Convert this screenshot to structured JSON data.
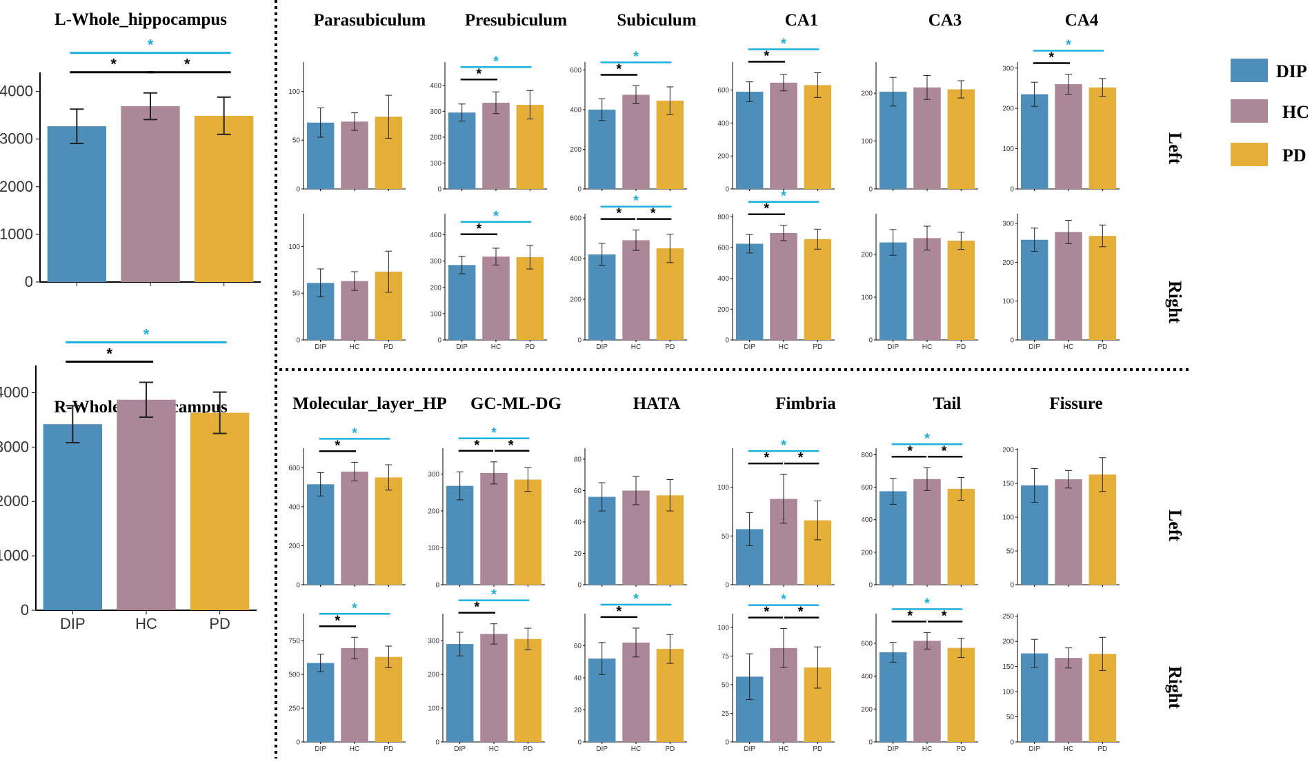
{
  "colors": {
    "DIP": "#4e8eba",
    "HC": "#ab8797",
    "PD": "#e4ae37",
    "sig_black": "#000000",
    "sig_blue": "#1ab0e0"
  },
  "legend": [
    {
      "label": "DIP",
      "color": "#4e8eba"
    },
    {
      "label": "HC",
      "color": "#ab8797"
    },
    {
      "label": "PD",
      "color": "#e4ae37"
    }
  ],
  "row_labels": {
    "left": "Left",
    "right": "Right"
  },
  "chart_data": [
    {
      "id": "L_whole",
      "type": "bar",
      "title": "L-Whole_hippocampus",
      "categories": [
        "DIP",
        "HC",
        "PD"
      ],
      "values": [
        3270,
        3690,
        3490
      ],
      "errors": [
        360,
        280,
        390
      ],
      "ylim": [
        0,
        4400
      ],
      "yticks": [
        0,
        1000,
        2000,
        3000,
        4000
      ],
      "show_xlabels": false,
      "sig": [
        {
          "pair": [
            0,
            1
          ],
          "color": "black",
          "level": 0
        },
        {
          "pair": [
            1,
            2
          ],
          "color": "black",
          "level": 0
        },
        {
          "pair": [
            0,
            2
          ],
          "color": "blue",
          "level": 1
        }
      ]
    },
    {
      "id": "R_whole",
      "type": "bar",
      "title": "R-Whole_hippocampus",
      "categories": [
        "DIP",
        "HC",
        "PD"
      ],
      "values": [
        3420,
        3870,
        3630
      ],
      "errors": [
        340,
        320,
        380
      ],
      "ylim": [
        0,
        4500
      ],
      "yticks": [
        0,
        1000,
        2000,
        3000,
        4000
      ],
      "show_xlabels": true,
      "sig": [
        {
          "pair": [
            0,
            1
          ],
          "color": "black",
          "level": 0
        },
        {
          "pair": [
            0,
            2
          ],
          "color": "blue",
          "level": 1
        }
      ]
    },
    {
      "id": "L_para",
      "type": "bar",
      "title": "Parasubiculum",
      "hemisphere": "Left",
      "categories": [
        "DIP",
        "HC",
        "PD"
      ],
      "values": [
        68,
        69,
        74
      ],
      "errors": [
        15,
        9,
        22
      ],
      "ylim": [
        0,
        130
      ],
      "yticks": [
        0,
        50,
        100
      ],
      "show_xlabels": false,
      "sig": []
    },
    {
      "id": "L_presub",
      "type": "bar",
      "title": "Presubiculum",
      "hemisphere": "Left",
      "categories": [
        "DIP",
        "HC",
        "PD"
      ],
      "values": [
        295,
        333,
        325
      ],
      "errors": [
        33,
        42,
        55
      ],
      "ylim": [
        0,
        490
      ],
      "yticks": [
        0,
        100,
        200,
        300,
        400
      ],
      "show_xlabels": false,
      "sig": [
        {
          "pair": [
            0,
            1
          ],
          "color": "black",
          "level": 0
        },
        {
          "pair": [
            0,
            2
          ],
          "color": "blue",
          "level": 1
        }
      ]
    },
    {
      "id": "L_sub",
      "type": "bar",
      "title": "Subiculum",
      "hemisphere": "Left",
      "categories": [
        "DIP",
        "HC",
        "PD"
      ],
      "values": [
        400,
        475,
        445
      ],
      "errors": [
        55,
        45,
        70
      ],
      "ylim": [
        0,
        640
      ],
      "yticks": [
        0,
        200,
        400,
        600
      ],
      "show_xlabels": false,
      "sig": [
        {
          "pair": [
            0,
            1
          ],
          "color": "black",
          "level": 0
        },
        {
          "pair": [
            0,
            2
          ],
          "color": "blue",
          "level": 1
        }
      ]
    },
    {
      "id": "L_ca1",
      "type": "bar",
      "title": "CA1",
      "hemisphere": "Left",
      "categories": [
        "DIP",
        "HC",
        "PD"
      ],
      "values": [
        590,
        645,
        630
      ],
      "errors": [
        60,
        50,
        75
      ],
      "ylim": [
        0,
        770
      ],
      "yticks": [
        0,
        200,
        400,
        600
      ],
      "show_xlabels": false,
      "sig": [
        {
          "pair": [
            0,
            1
          ],
          "color": "black",
          "level": 0
        },
        {
          "pair": [
            0,
            2
          ],
          "color": "blue",
          "level": 1
        }
      ]
    },
    {
      "id": "L_ca3",
      "type": "bar",
      "title": "CA3",
      "hemisphere": "Left",
      "categories": [
        "DIP",
        "HC",
        "PD"
      ],
      "values": [
        203,
        212,
        208
      ],
      "errors": [
        30,
        25,
        18
      ],
      "ylim": [
        0,
        265
      ],
      "yticks": [
        0,
        100,
        200
      ],
      "show_xlabels": false,
      "sig": []
    },
    {
      "id": "L_ca4",
      "type": "bar",
      "title": "CA4",
      "hemisphere": "Left",
      "categories": [
        "DIP",
        "HC",
        "PD"
      ],
      "values": [
        235,
        260,
        252
      ],
      "errors": [
        30,
        25,
        22
      ],
      "ylim": [
        0,
        315
      ],
      "yticks": [
        0,
        100,
        200,
        300
      ],
      "show_xlabels": false,
      "sig": [
        {
          "pair": [
            0,
            1
          ],
          "color": "black",
          "level": 0
        },
        {
          "pair": [
            0,
            2
          ],
          "color": "blue",
          "level": 1
        }
      ]
    },
    {
      "id": "R_para",
      "type": "bar",
      "title": "",
      "hemisphere": "Right",
      "categories": [
        "DIP",
        "HC",
        "PD"
      ],
      "values": [
        61,
        63,
        73
      ],
      "errors": [
        15,
        10,
        22
      ],
      "ylim": [
        0,
        135
      ],
      "yticks": [
        0,
        50,
        100
      ],
      "show_xlabels": true,
      "sig": []
    },
    {
      "id": "R_presub",
      "type": "bar",
      "title": "",
      "hemisphere": "Right",
      "categories": [
        "DIP",
        "HC",
        "PD"
      ],
      "values": [
        285,
        317,
        315
      ],
      "errors": [
        33,
        32,
        45
      ],
      "ylim": [
        0,
        480
      ],
      "yticks": [
        0,
        100,
        200,
        300,
        400
      ],
      "show_xlabels": true,
      "sig": [
        {
          "pair": [
            0,
            1
          ],
          "color": "black",
          "level": 0
        },
        {
          "pair": [
            0,
            2
          ],
          "color": "blue",
          "level": 1
        }
      ]
    },
    {
      "id": "R_sub",
      "type": "bar",
      "title": "",
      "hemisphere": "Right",
      "categories": [
        "DIP",
        "HC",
        "PD"
      ],
      "values": [
        420,
        490,
        450
      ],
      "errors": [
        55,
        50,
        70
      ],
      "ylim": [
        0,
        620
      ],
      "yticks": [
        0,
        200,
        400,
        600
      ],
      "show_xlabels": true,
      "sig": [
        {
          "pair": [
            0,
            1
          ],
          "color": "black",
          "level": 0
        },
        {
          "pair": [
            1,
            2
          ],
          "color": "black",
          "level": 0
        },
        {
          "pair": [
            0,
            2
          ],
          "color": "blue",
          "level": 1
        }
      ]
    },
    {
      "id": "R_ca1",
      "type": "bar",
      "title": "",
      "hemisphere": "Right",
      "categories": [
        "DIP",
        "HC",
        "PD"
      ],
      "values": [
        625,
        695,
        655
      ],
      "errors": [
        60,
        50,
        65
      ],
      "ylim": [
        0,
        820
      ],
      "yticks": [
        0,
        200,
        400,
        600,
        800
      ],
      "show_xlabels": true,
      "sig": [
        {
          "pair": [
            0,
            1
          ],
          "color": "black",
          "level": 0
        },
        {
          "pair": [
            0,
            2
          ],
          "color": "blue",
          "level": 1
        }
      ]
    },
    {
      "id": "R_ca3",
      "type": "bar",
      "title": "",
      "hemisphere": "Right",
      "categories": [
        "DIP",
        "HC",
        "PD"
      ],
      "values": [
        228,
        238,
        232
      ],
      "errors": [
        30,
        28,
        20
      ],
      "ylim": [
        0,
        295
      ],
      "yticks": [
        0,
        100,
        200
      ],
      "show_xlabels": true,
      "sig": []
    },
    {
      "id": "R_ca4",
      "type": "bar",
      "title": "",
      "hemisphere": "Right",
      "categories": [
        "DIP",
        "HC",
        "PD"
      ],
      "values": [
        258,
        278,
        268
      ],
      "errors": [
        30,
        30,
        28
      ],
      "ylim": [
        0,
        325
      ],
      "yticks": [
        0,
        100,
        200,
        300
      ],
      "show_xlabels": true,
      "sig": []
    },
    {
      "id": "L_mol",
      "type": "bar",
      "title": "Molecular_layer_HP",
      "hemisphere": "Left",
      "categories": [
        "DIP",
        "HC",
        "PD"
      ],
      "values": [
        515,
        580,
        550
      ],
      "errors": [
        60,
        48,
        65
      ],
      "ylim": [
        0,
        700
      ],
      "yticks": [
        0,
        200,
        400,
        600
      ],
      "show_xlabels": false,
      "sig": [
        {
          "pair": [
            0,
            1
          ],
          "color": "black",
          "level": 0
        },
        {
          "pair": [
            0,
            2
          ],
          "color": "blue",
          "level": 1
        }
      ]
    },
    {
      "id": "L_gcml",
      "type": "bar",
      "title": "GC-ML-DG",
      "hemisphere": "Left",
      "categories": [
        "DIP",
        "HC",
        "PD"
      ],
      "values": [
        268,
        303,
        285
      ],
      "errors": [
        38,
        30,
        32
      ],
      "ylim": [
        0,
        370
      ],
      "yticks": [
        0,
        100,
        200,
        300
      ],
      "show_xlabels": false,
      "sig": [
        {
          "pair": [
            0,
            1
          ],
          "color": "black",
          "level": 0
        },
        {
          "pair": [
            1,
            2
          ],
          "color": "black",
          "level": 0
        },
        {
          "pair": [
            0,
            2
          ],
          "color": "blue",
          "level": 1
        }
      ]
    },
    {
      "id": "L_hata",
      "type": "bar",
      "title": "HATA",
      "hemisphere": "Left",
      "categories": [
        "DIP",
        "HC",
        "PD"
      ],
      "values": [
        56,
        60,
        57
      ],
      "errors": [
        9,
        9,
        10
      ],
      "ylim": [
        0,
        87
      ],
      "yticks": [
        0,
        20,
        40,
        60,
        80
      ],
      "show_xlabels": false,
      "sig": []
    },
    {
      "id": "L_fimbria",
      "type": "bar",
      "title": "Fimbria",
      "hemisphere": "Left",
      "categories": [
        "DIP",
        "HC",
        "PD"
      ],
      "values": [
        57,
        88,
        66
      ],
      "errors": [
        17,
        25,
        20
      ],
      "ylim": [
        0,
        140
      ],
      "yticks": [
        0,
        50,
        100
      ],
      "show_xlabels": false,
      "sig": [
        {
          "pair": [
            0,
            1
          ],
          "color": "black",
          "level": 0
        },
        {
          "pair": [
            1,
            2
          ],
          "color": "black",
          "level": 0
        },
        {
          "pair": [
            0,
            2
          ],
          "color": "blue",
          "level": 1
        }
      ]
    },
    {
      "id": "L_tail",
      "type": "bar",
      "title": "Tail",
      "hemisphere": "Left",
      "categories": [
        "DIP",
        "HC",
        "PD"
      ],
      "values": [
        575,
        650,
        590
      ],
      "errors": [
        80,
        70,
        70
      ],
      "ylim": [
        0,
        840
      ],
      "yticks": [
        0,
        200,
        400,
        600,
        800
      ],
      "show_xlabels": false,
      "sig": [
        {
          "pair": [
            0,
            1
          ],
          "color": "black",
          "level": 0
        },
        {
          "pair": [
            1,
            2
          ],
          "color": "black",
          "level": 0
        },
        {
          "pair": [
            0,
            2
          ],
          "color": "blue",
          "level": 1
        }
      ]
    },
    {
      "id": "L_fissure",
      "type": "bar",
      "title": "Fissure",
      "hemisphere": "Left",
      "categories": [
        "DIP",
        "HC",
        "PD"
      ],
      "values": [
        147,
        156,
        163
      ],
      "errors": [
        25,
        13,
        25
      ],
      "ylim": [
        0,
        202
      ],
      "yticks": [
        0,
        50,
        100,
        150,
        200
      ],
      "show_xlabels": false,
      "sig": []
    },
    {
      "id": "R_mol",
      "type": "bar",
      "title": "",
      "hemisphere": "Right",
      "categories": [
        "DIP",
        "HC",
        "PD"
      ],
      "values": [
        585,
        695,
        630
      ],
      "errors": [
        65,
        80,
        80
      ],
      "ylim": [
        0,
        950
      ],
      "yticks": [
        0,
        250,
        500,
        750
      ],
      "show_xlabels": true,
      "sig": [
        {
          "pair": [
            0,
            1
          ],
          "color": "black",
          "level": 0
        },
        {
          "pair": [
            0,
            2
          ],
          "color": "blue",
          "level": 1
        }
      ]
    },
    {
      "id": "R_gcml",
      "type": "bar",
      "title": "",
      "hemisphere": "Right",
      "categories": [
        "DIP",
        "HC",
        "PD"
      ],
      "values": [
        290,
        320,
        305
      ],
      "errors": [
        35,
        30,
        32
      ],
      "ylim": [
        0,
        380
      ],
      "yticks": [
        0,
        100,
        200,
        300
      ],
      "show_xlabels": true,
      "sig": [
        {
          "pair": [
            0,
            1
          ],
          "color": "black",
          "level": 0
        },
        {
          "pair": [
            0,
            2
          ],
          "color": "blue",
          "level": 1
        }
      ]
    },
    {
      "id": "R_hata",
      "type": "bar",
      "title": "",
      "hemisphere": "Right",
      "categories": [
        "DIP",
        "HC",
        "PD"
      ],
      "values": [
        52,
        62,
        58
      ],
      "errors": [
        10,
        9,
        9
      ],
      "ylim": [
        0,
        80
      ],
      "yticks": [
        0,
        20,
        40,
        60
      ],
      "show_xlabels": true,
      "sig": [
        {
          "pair": [
            0,
            1
          ],
          "color": "black",
          "level": 0
        },
        {
          "pair": [
            0,
            2
          ],
          "color": "blue",
          "level": 1
        }
      ]
    },
    {
      "id": "R_fimbria",
      "type": "bar",
      "title": "",
      "hemisphere": "Right",
      "categories": [
        "DIP",
        "HC",
        "PD"
      ],
      "values": [
        57,
        82,
        65
      ],
      "errors": [
        20,
        17,
        18
      ],
      "ylim": [
        0,
        112
      ],
      "yticks": [
        0,
        25,
        50,
        75,
        100
      ],
      "show_xlabels": true,
      "sig": [
        {
          "pair": [
            0,
            1
          ],
          "color": "black",
          "level": 0
        },
        {
          "pair": [
            1,
            2
          ],
          "color": "black",
          "level": 0
        },
        {
          "pair": [
            0,
            2
          ],
          "color": "blue",
          "level": 1
        }
      ]
    },
    {
      "id": "R_tail",
      "type": "bar",
      "title": "",
      "hemisphere": "Right",
      "categories": [
        "DIP",
        "HC",
        "PD"
      ],
      "values": [
        545,
        615,
        572
      ],
      "errors": [
        60,
        50,
        58
      ],
      "ylim": [
        0,
        780
      ],
      "yticks": [
        0,
        200,
        400,
        600
      ],
      "show_xlabels": true,
      "sig": [
        {
          "pair": [
            0,
            1
          ],
          "color": "black",
          "level": 0
        },
        {
          "pair": [
            1,
            2
          ],
          "color": "black",
          "level": 0
        },
        {
          "pair": [
            0,
            2
          ],
          "color": "blue",
          "level": 1
        }
      ]
    },
    {
      "id": "R_fissure",
      "type": "bar",
      "title": "",
      "hemisphere": "Right",
      "categories": [
        "DIP",
        "HC",
        "PD"
      ],
      "values": [
        176,
        167,
        175
      ],
      "errors": [
        28,
        20,
        33
      ],
      "ylim": [
        0,
        255
      ],
      "yticks": [
        0,
        50,
        100,
        150,
        200,
        250
      ],
      "show_xlabels": true,
      "sig": []
    }
  ]
}
